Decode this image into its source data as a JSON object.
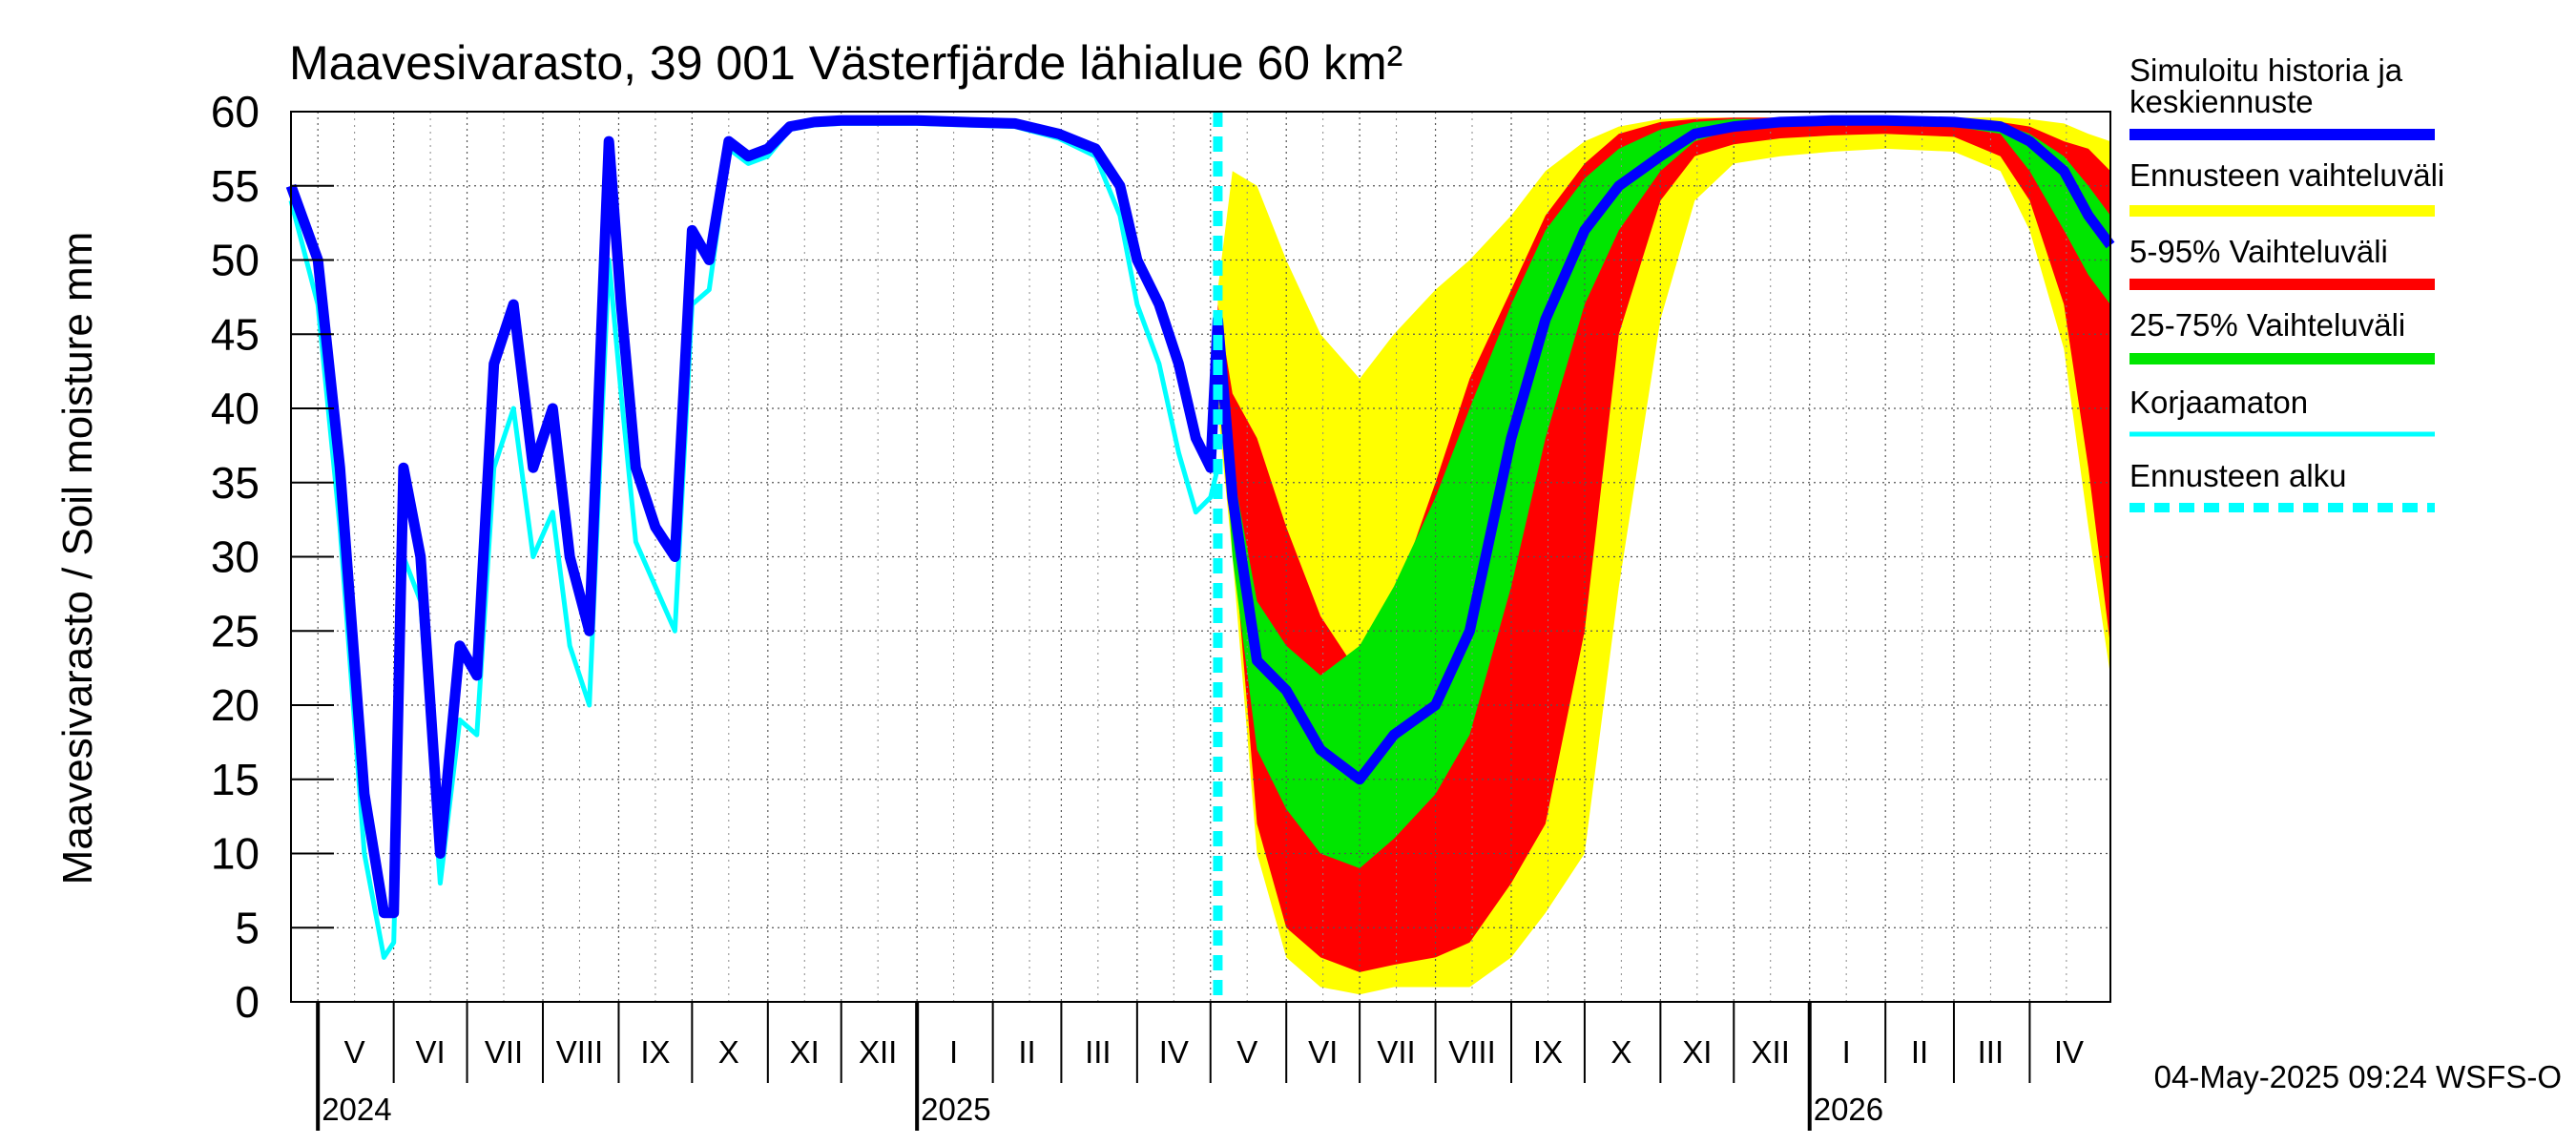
{
  "chart_data": {
    "type": "area",
    "title": "Maavesivarasto, 39 001 Västerfjärde lähialue 60 km²",
    "ylabel": "Maavesivarasto / Soil moisture   mm",
    "ylim": [
      0,
      60
    ],
    "yticks": [
      "0",
      "5",
      "10",
      "15",
      "20",
      "25",
      "30",
      "35",
      "40",
      "45",
      "50",
      "55",
      "60"
    ],
    "xlim": [
      "2024-04-20",
      "2026-05-04"
    ],
    "grid": true,
    "legend_position": "right",
    "months": [
      {
        "label": "V",
        "start": "2024-05-01"
      },
      {
        "label": "VI",
        "start": "2024-06-01"
      },
      {
        "label": "VII",
        "start": "2024-07-01"
      },
      {
        "label": "VIII",
        "start": "2024-08-01"
      },
      {
        "label": "IX",
        "start": "2024-09-01"
      },
      {
        "label": "X",
        "start": "2024-10-01"
      },
      {
        "label": "XI",
        "start": "2024-11-01"
      },
      {
        "label": "XII",
        "start": "2024-12-01"
      },
      {
        "label": "I",
        "start": "2025-01-01"
      },
      {
        "label": "II",
        "start": "2025-02-01"
      },
      {
        "label": "III",
        "start": "2025-03-01"
      },
      {
        "label": "IV",
        "start": "2025-04-01"
      },
      {
        "label": "V",
        "start": "2025-05-01"
      },
      {
        "label": "VI",
        "start": "2025-06-01"
      },
      {
        "label": "VII",
        "start": "2025-07-01"
      },
      {
        "label": "VIII",
        "start": "2025-08-01"
      },
      {
        "label": "IX",
        "start": "2025-09-01"
      },
      {
        "label": "X",
        "start": "2025-10-01"
      },
      {
        "label": "XI",
        "start": "2025-11-01"
      },
      {
        "label": "XII",
        "start": "2025-12-01"
      },
      {
        "label": "I",
        "start": "2026-01-01"
      },
      {
        "label": "II",
        "start": "2026-02-01"
      },
      {
        "label": "III",
        "start": "2026-03-01"
      },
      {
        "label": "IV",
        "start": "2026-04-01"
      }
    ],
    "years": [
      {
        "label": "2024",
        "start": "2024-05-01"
      },
      {
        "label": "2025",
        "start": "2025-01-01"
      },
      {
        "label": "2026",
        "start": "2026-01-01"
      }
    ],
    "forecast_start": "2025-05-04",
    "series": [
      {
        "name": "Simuloitu historia ja keskiennuste",
        "color": "#0000ff",
        "x": [
          "2024-04-20",
          "2024-05-01",
          "2024-05-10",
          "2024-05-20",
          "2024-05-28",
          "2024-06-01",
          "2024-06-05",
          "2024-06-12",
          "2024-06-20",
          "2024-06-28",
          "2024-07-05",
          "2024-07-12",
          "2024-07-20",
          "2024-07-28",
          "2024-08-05",
          "2024-08-12",
          "2024-08-20",
          "2024-08-28",
          "2024-09-02",
          "2024-09-08",
          "2024-09-16",
          "2024-09-24",
          "2024-10-01",
          "2024-10-08",
          "2024-10-16",
          "2024-10-24",
          "2024-11-01",
          "2024-11-10",
          "2024-11-20",
          "2024-12-01",
          "2024-12-15",
          "2025-01-01",
          "2025-01-20",
          "2025-02-10",
          "2025-02-28",
          "2025-03-15",
          "2025-03-25",
          "2025-04-01",
          "2025-04-10",
          "2025-04-18",
          "2025-04-25",
          "2025-05-01",
          "2025-05-04",
          "2025-05-10",
          "2025-05-20",
          "2025-06-01",
          "2025-06-15",
          "2025-07-01",
          "2025-07-15",
          "2025-08-01",
          "2025-08-15",
          "2025-09-01",
          "2025-09-15",
          "2025-10-01",
          "2025-10-15",
          "2025-11-01",
          "2025-11-15",
          "2025-12-01",
          "2025-12-20",
          "2026-01-10",
          "2026-02-01",
          "2026-03-01",
          "2026-03-20",
          "2026-04-01",
          "2026-04-15",
          "2026-04-25",
          "2026-05-04"
        ],
        "y": [
          55,
          50,
          36,
          14,
          6,
          6,
          36,
          30,
          10,
          24,
          22,
          43,
          47,
          36,
          40,
          30,
          25,
          58,
          47,
          36,
          32,
          30,
          52,
          50,
          58,
          57,
          57.5,
          59,
          59.3,
          59.4,
          59.4,
          59.4,
          59.3,
          59.2,
          58.5,
          57.5,
          55,
          50,
          47,
          43,
          38,
          36,
          46,
          34,
          23,
          21,
          17,
          15,
          18,
          20,
          25,
          38,
          46,
          52,
          55,
          57,
          58.5,
          59,
          59.3,
          59.4,
          59.4,
          59.3,
          59,
          58,
          56,
          53,
          51
        ]
      },
      {
        "name": "Korjaamaton",
        "color": "#00ffff",
        "x": [
          "2024-04-20",
          "2024-05-01",
          "2024-05-10",
          "2024-05-20",
          "2024-05-28",
          "2024-06-01",
          "2024-06-05",
          "2024-06-12",
          "2024-06-20",
          "2024-06-28",
          "2024-07-05",
          "2024-07-12",
          "2024-07-20",
          "2024-07-28",
          "2024-08-05",
          "2024-08-12",
          "2024-08-20",
          "2024-08-28",
          "2024-09-02",
          "2024-09-08",
          "2024-09-16",
          "2024-09-24",
          "2024-10-01",
          "2024-10-08",
          "2024-10-16",
          "2024-10-24",
          "2024-11-01",
          "2024-11-10",
          "2024-11-20",
          "2024-12-01",
          "2024-12-15",
          "2025-01-01",
          "2025-01-20",
          "2025-02-10",
          "2025-02-28",
          "2025-03-15",
          "2025-03-25",
          "2025-04-01",
          "2025-04-10",
          "2025-04-18",
          "2025-04-25",
          "2025-05-01",
          "2025-05-04"
        ],
        "y": [
          54,
          47,
          32,
          10,
          3,
          4,
          30,
          27,
          8,
          19,
          18,
          36,
          40,
          30,
          33,
          24,
          20,
          50,
          41,
          31,
          28,
          25,
          47,
          48,
          57.5,
          56.5,
          57,
          58.8,
          59.1,
          59.2,
          59.2,
          59.2,
          59.1,
          59,
          58.2,
          57,
          53,
          47,
          43,
          37,
          33,
          34,
          36
        ]
      }
    ],
    "bands": [
      {
        "name": "Ennusteen vaihteluväli",
        "color": "#ffff00",
        "x": [
          "2025-05-04",
          "2025-05-10",
          "2025-05-20",
          "2025-06-01",
          "2025-06-15",
          "2025-07-01",
          "2025-07-15",
          "2025-08-01",
          "2025-08-15",
          "2025-09-01",
          "2025-09-15",
          "2025-10-01",
          "2025-10-15",
          "2025-11-01",
          "2025-11-15",
          "2025-12-01",
          "2025-12-20",
          "2026-01-10",
          "2026-02-01",
          "2026-03-01",
          "2026-03-20",
          "2026-04-01",
          "2026-04-15",
          "2026-04-25",
          "2026-05-04"
        ],
        "low": [
          40,
          30,
          10,
          3,
          1,
          0.5,
          1,
          1,
          1,
          3,
          6,
          10,
          28,
          46,
          54,
          56.5,
          57,
          57.3,
          57.5,
          57.3,
          56,
          52,
          44,
          32,
          22
        ],
        "high": [
          48,
          56,
          55,
          50,
          45,
          42,
          45,
          48,
          50,
          53,
          56,
          58,
          59,
          59.5,
          59.6,
          59.6,
          59.6,
          59.6,
          59.6,
          59.6,
          59.6,
          59.5,
          59.2,
          58.5,
          58
        ]
      },
      {
        "name": "5-95% Vaihteluväli",
        "color": "#ff0000",
        "x": [
          "2025-05-04",
          "2025-05-10",
          "2025-05-20",
          "2025-06-01",
          "2025-06-15",
          "2025-07-01",
          "2025-07-15",
          "2025-08-01",
          "2025-08-15",
          "2025-09-01",
          "2025-09-15",
          "2025-10-01",
          "2025-10-15",
          "2025-11-01",
          "2025-11-15",
          "2025-12-01",
          "2025-12-20",
          "2026-01-10",
          "2026-02-01",
          "2026-03-01",
          "2026-03-20",
          "2026-04-01",
          "2026-04-15",
          "2026-04-25",
          "2026-05-04"
        ],
        "low": [
          44,
          32,
          12,
          5,
          3,
          2,
          2.5,
          3,
          4,
          8,
          12,
          25,
          45,
          54,
          57,
          57.8,
          58.2,
          58.4,
          58.5,
          58.3,
          57,
          54,
          47,
          36,
          24
        ],
        "high": [
          47,
          41,
          38,
          32,
          26,
          22,
          27,
          35,
          42,
          48,
          53,
          56.5,
          58.5,
          59.3,
          59.5,
          59.6,
          59.6,
          59.6,
          59.6,
          59.5,
          59.3,
          59,
          58,
          57.5,
          56
        ]
      },
      {
        "name": "25-75% Vaihteluväli",
        "color": "#00e600",
        "x": [
          "2025-05-04",
          "2025-05-10",
          "2025-05-20",
          "2025-06-01",
          "2025-06-15",
          "2025-07-01",
          "2025-07-15",
          "2025-08-01",
          "2025-08-15",
          "2025-09-01",
          "2025-09-15",
          "2025-10-01",
          "2025-10-15",
          "2025-11-01",
          "2025-11-15",
          "2025-12-01",
          "2025-12-20",
          "2026-01-10",
          "2026-02-01",
          "2026-03-01",
          "2026-03-20",
          "2026-04-01",
          "2026-04-15",
          "2026-04-25",
          "2026-05-04"
        ],
        "low": [
          45,
          30,
          17,
          13,
          10,
          9,
          11,
          14,
          18,
          28,
          38,
          47,
          52,
          56,
          58,
          58.8,
          59.1,
          59.2,
          59.2,
          59,
          58.5,
          56,
          52,
          49,
          47
        ],
        "high": [
          46,
          36,
          27,
          24,
          22,
          24,
          28,
          34,
          40,
          47,
          52,
          55.5,
          57.5,
          58.8,
          59.3,
          59.5,
          59.5,
          59.5,
          59.5,
          59.4,
          59.2,
          58.5,
          57,
          55,
          53
        ]
      }
    ],
    "legend": [
      {
        "label": "Simuloitu historia ja keskiennuste",
        "color": "#0000ff",
        "style": "solid"
      },
      {
        "label": "Ennusteen vaihteluväli",
        "color": "#ffff00",
        "style": "solid"
      },
      {
        "label": "5-95% Vaihteluväli",
        "color": "#ff0000",
        "style": "solid"
      },
      {
        "label": "25-75% Vaihteluväli",
        "color": "#00e600",
        "style": "solid"
      },
      {
        "label": "Korjaamaton",
        "color": "#00ffff",
        "style": "thin"
      },
      {
        "label": "Ennusteen alku",
        "color": "#00ffff",
        "style": "dashed"
      }
    ],
    "footer": "04-May-2025 09:24 WSFS-O"
  }
}
